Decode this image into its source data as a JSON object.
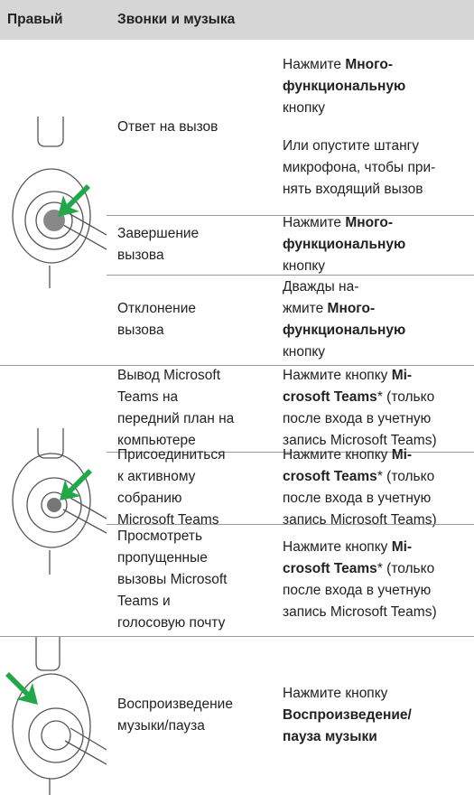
{
  "header": {
    "col1": "Правый",
    "col2": "Звонки и музыка"
  },
  "groups": [
    {
      "rows": [
        {
          "function": [
            "Ответ на вызов"
          ],
          "action": [
            [
              [
                "Нажмите ",
                {
                  "bold": "Много-"
                }
              ],
              [
                {
                  "bold": "функциональную"
                }
              ],
              [
                "кнопку"
              ]
            ],
            [
              [
                "Или опустите штангу"
              ],
              [
                "микрофона, чтобы при-"
              ],
              [
                "нять входящий вызов"
              ]
            ]
          ]
        },
        {
          "function": [
            "Завершение",
            "вызова"
          ],
          "action": [
            [
              [
                "Нажмите ",
                {
                  "bold": "Много-"
                }
              ],
              [
                {
                  "bold": "функциональную"
                }
              ],
              [
                "кнопку"
              ]
            ]
          ]
        },
        {
          "function": [
            "Отклонение",
            "вызова"
          ],
          "action": [
            [
              [
                "Дважды на-"
              ],
              [
                "жмите ",
                {
                  "bold": "Много-"
                }
              ],
              [
                {
                  "bold": "функциональную"
                }
              ],
              [
                "кнопку"
              ]
            ]
          ]
        }
      ]
    },
    {
      "rows": [
        {
          "function": [
            "Вывод Microsoft",
            "Teams на",
            "передний план на",
            "компьютере"
          ],
          "action": [
            [
              [
                "Нажмите кнопку ",
                {
                  "bold": "Mi-"
                }
              ],
              [
                {
                  "bold": "crosoft Teams"
                },
                "* (только"
              ],
              [
                "после входа в учетную"
              ],
              [
                "запись Microsoft Teams)"
              ]
            ]
          ]
        },
        {
          "function": [
            "Присоединиться",
            "к активному",
            "собранию",
            "Microsoft Teams"
          ],
          "action": [
            [
              [
                "Нажмите кнопку ",
                {
                  "bold": "Mi-"
                }
              ],
              [
                {
                  "bold": "crosoft Teams"
                },
                "* (только"
              ],
              [
                "после входа в учетную"
              ],
              [
                "запись Microsoft Teams)"
              ]
            ]
          ]
        },
        {
          "function": [
            "Просмотреть",
            "пропущенные",
            "вызовы Microsoft",
            "Teams и",
            "голосовую почту"
          ],
          "action": [
            [
              [
                "Нажмите кнопку ",
                {
                  "bold": "Mi-"
                }
              ],
              [
                {
                  "bold": "crosoft Teams"
                },
                "* (только"
              ],
              [
                "после входа в учетную"
              ],
              [
                "запись Microsoft Teams)"
              ]
            ]
          ]
        }
      ]
    },
    {
      "rows": [
        {
          "function": [
            "Воспроизведение",
            "музыки/пауза"
          ],
          "action": [
            [
              [
                "Нажмите кнопку"
              ],
              [
                {
                  "bold": "Воспроизведение/"
                }
              ],
              [
                {
                  "bold": "пауза музыки"
                }
              ]
            ]
          ]
        }
      ]
    }
  ]
}
